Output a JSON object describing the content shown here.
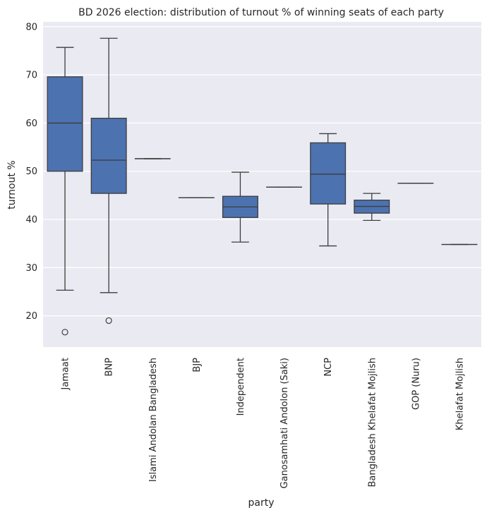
{
  "chart_data": {
    "type": "box",
    "title": "BD 2026 election: distribution of turnout % of winning seats of each party",
    "xlabel": "party",
    "ylabel": "turnout %",
    "ylim": [
      13.5,
      81
    ],
    "yticks": [
      20,
      30,
      40,
      50,
      60,
      70,
      80
    ],
    "grid": true,
    "colors": {
      "background": "#eaeaf2",
      "grid": "#ffffff",
      "box_fill": "#4c72b0",
      "line": "#3d3d3d",
      "text": "#262626"
    },
    "categories": [
      "Jamaat",
      "BNP",
      "Islami Andolan Bangladesh",
      "BJP",
      "Independent",
      "Ganosamhati Andolon (Saki)",
      "NCP",
      "Bangladesh Khelafat Mojlish",
      "GOP (Nuru)",
      "Khelafat Mojlish"
    ],
    "boxes": [
      {
        "party": "Jamaat",
        "whisker_low": 25.3,
        "q1": 50.0,
        "median": 60.0,
        "q3": 69.6,
        "whisker_high": 75.7,
        "outliers": [
          16.6
        ]
      },
      {
        "party": "BNP",
        "whisker_low": 24.8,
        "q1": 45.4,
        "median": 52.3,
        "q3": 61.0,
        "whisker_high": 77.6,
        "outliers": [
          19.0
        ]
      },
      {
        "party": "Islami Andolan Bangladesh",
        "whisker_low": 52.6,
        "q1": 52.6,
        "median": 52.6,
        "q3": 52.6,
        "whisker_high": 52.6,
        "outliers": []
      },
      {
        "party": "BJP",
        "whisker_low": 44.5,
        "q1": 44.5,
        "median": 44.5,
        "q3": 44.5,
        "whisker_high": 44.5,
        "outliers": []
      },
      {
        "party": "Independent",
        "whisker_low": 35.3,
        "q1": 40.4,
        "median": 42.6,
        "q3": 44.8,
        "whisker_high": 49.8,
        "outliers": []
      },
      {
        "party": "Ganosamhati Andolon (Saki)",
        "whisker_low": 46.7,
        "q1": 46.7,
        "median": 46.7,
        "q3": 46.7,
        "whisker_high": 46.7,
        "outliers": []
      },
      {
        "party": "NCP",
        "whisker_low": 34.5,
        "q1": 43.2,
        "median": 49.4,
        "q3": 55.9,
        "whisker_high": 57.8,
        "outliers": []
      },
      {
        "party": "Bangladesh Khelafat Mojlish",
        "whisker_low": 39.8,
        "q1": 41.3,
        "median": 42.7,
        "q3": 44.0,
        "whisker_high": 45.4,
        "outliers": []
      },
      {
        "party": "GOP (Nuru)",
        "whisker_low": 47.5,
        "q1": 47.5,
        "median": 47.5,
        "q3": 47.5,
        "whisker_high": 47.5,
        "outliers": []
      },
      {
        "party": "Khelafat Mojlish",
        "whisker_low": 34.8,
        "q1": 34.8,
        "median": 34.8,
        "q3": 34.8,
        "whisker_high": 34.8,
        "outliers": []
      }
    ]
  }
}
